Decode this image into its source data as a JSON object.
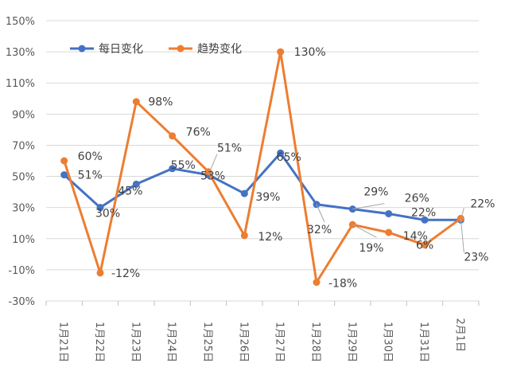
{
  "chart_data": {
    "type": "line",
    "title": "",
    "xlabel": "",
    "ylabel": "",
    "categories": [
      "1月21日",
      "1月22日",
      "1月23日",
      "1月24日",
      "1月25日",
      "1月26日",
      "1月27日",
      "1月28日",
      "1月29日",
      "1月30日",
      "1月31日",
      "2月1日"
    ],
    "ylim": [
      -30,
      150
    ],
    "yticks": [
      -30,
      -10,
      10,
      30,
      50,
      70,
      90,
      110,
      130,
      150
    ],
    "ytick_labels": [
      "-30%",
      "-10%",
      "10%",
      "30%",
      "50%",
      "70%",
      "90%",
      "110%",
      "130%",
      "150%"
    ],
    "grid": true,
    "legend_position": "top-left",
    "series": [
      {
        "name": "每日变化",
        "color": "#4472C4",
        "values": [
          51,
          30,
          45,
          55,
          51,
          39,
          65,
          32,
          29,
          26,
          22,
          22
        ],
        "labels": [
          "51%",
          "30%",
          "45%",
          "55%",
          "51%",
          "39%",
          "65%",
          "32%",
          "29%",
          "26%",
          "22%",
          "22%"
        ]
      },
      {
        "name": "趋势变化",
        "color": "#ED7D31",
        "values": [
          60,
          -12,
          98,
          76,
          53,
          12,
          130,
          -18,
          19,
          14,
          6,
          23
        ],
        "labels": [
          "60%",
          "-12%",
          "98%",
          "76%",
          "53%",
          "12%",
          "130%",
          "-18%",
          "19%",
          "14%",
          "6%",
          "23%"
        ]
      }
    ]
  }
}
